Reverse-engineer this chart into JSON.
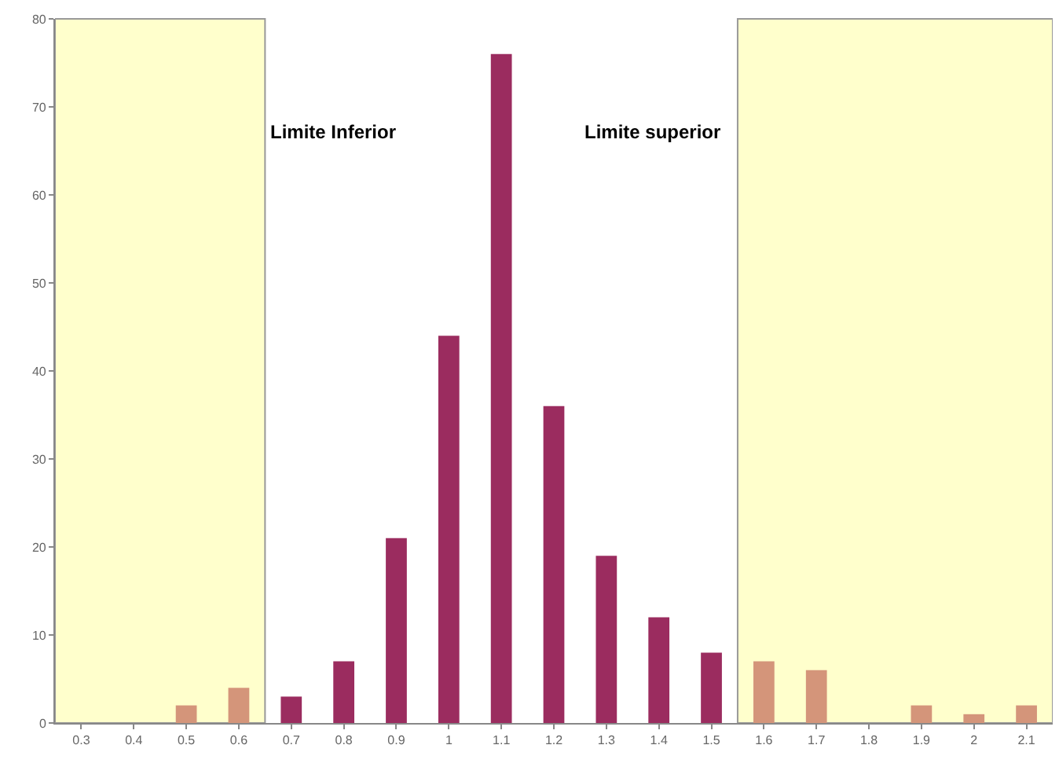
{
  "chart_data": {
    "type": "bar",
    "categories": [
      "0.3",
      "0.4",
      "0.5",
      "0.6",
      "0.7",
      "0.8",
      "0.9",
      "1",
      "1.1",
      "1.2",
      "1.3",
      "1.4",
      "1.5",
      "1.6",
      "1.7",
      "1.8",
      "1.9",
      "2",
      "2.1"
    ],
    "values": [
      0,
      0,
      2,
      4,
      3,
      7,
      21,
      44,
      76,
      36,
      19,
      12,
      8,
      7,
      6,
      0,
      2,
      1,
      2
    ],
    "colors": [
      "#d4957a",
      "#d4957a",
      "#d4957a",
      "#d4957a",
      "#9b2c5f",
      "#9b2c5f",
      "#9b2c5f",
      "#9b2c5f",
      "#9b2c5f",
      "#9b2c5f",
      "#9b2c5f",
      "#9b2c5f",
      "#9b2c5f",
      "#d4957a",
      "#d4957a",
      "#d4957a",
      "#d4957a",
      "#d4957a",
      "#d4957a"
    ],
    "ylim": [
      0,
      80
    ],
    "yticks": [
      0,
      10,
      20,
      30,
      40,
      50,
      60,
      70,
      80
    ],
    "bands": [
      {
        "axis": "x",
        "from": "0.3",
        "to": "0.6",
        "color": "#ffffcc"
      },
      {
        "axis": "x",
        "from": "1.6",
        "to": "2.1",
        "color": "#ffffcc"
      }
    ],
    "annotations": [
      "Limite Inferior",
      "Limite superior"
    ],
    "grid": false
  }
}
